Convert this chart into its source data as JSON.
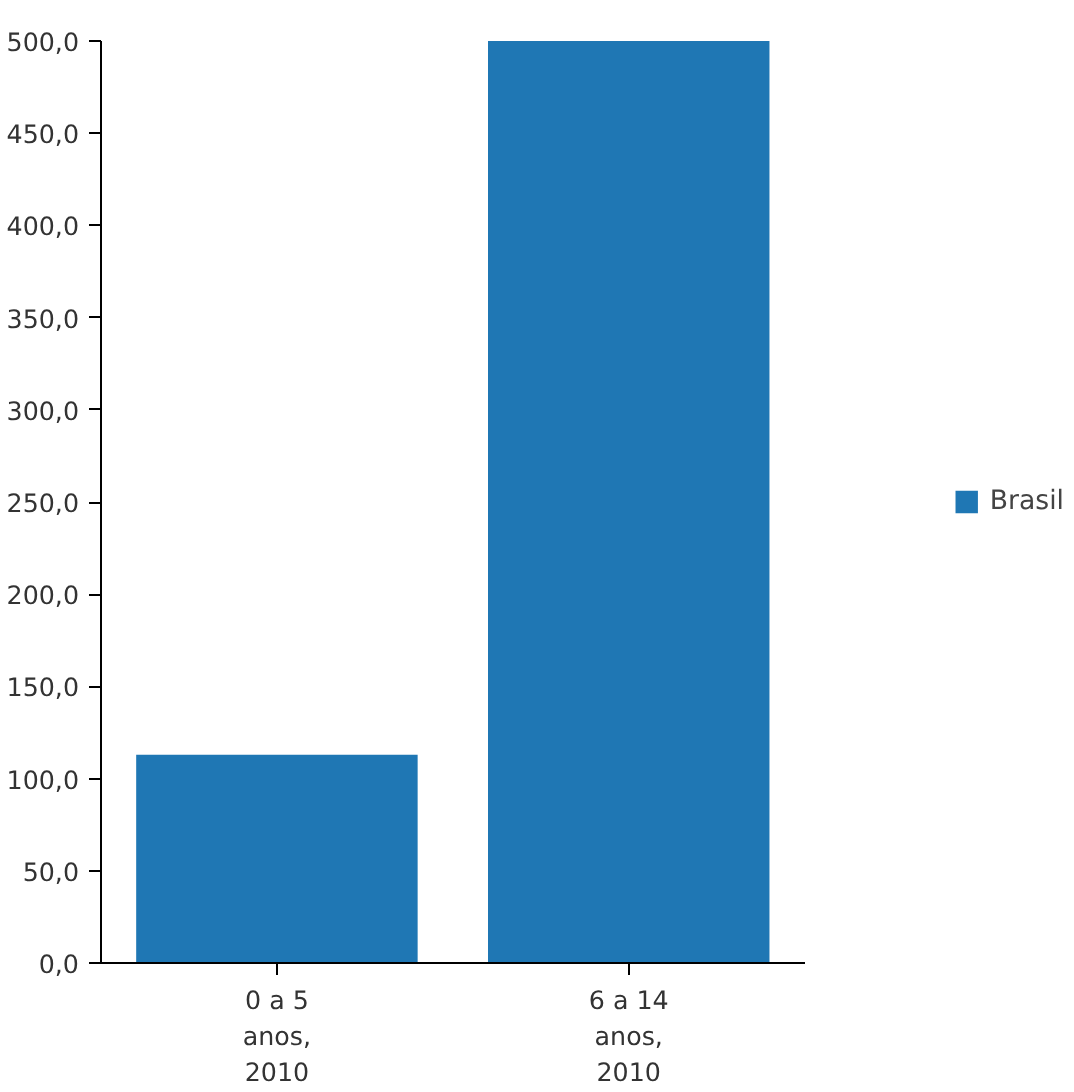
{
  "chart_data": {
    "type": "bar",
    "categories": [
      "0 a 5 anos, 2010",
      "6 a 14 anos, 2010"
    ],
    "series": [
      {
        "name": "Brasil",
        "color": "#1f77b4",
        "values": [
          113,
          500
        ]
      }
    ],
    "ylim": [
      0,
      500
    ],
    "yticks": [
      {
        "value": 0,
        "label": "0,0"
      },
      {
        "value": 50,
        "label": "50,0"
      },
      {
        "value": 100,
        "label": "100,0"
      },
      {
        "value": 150,
        "label": "150,0"
      },
      {
        "value": 200,
        "label": "200,0"
      },
      {
        "value": 250,
        "label": "250,0"
      },
      {
        "value": 300,
        "label": "300,0"
      },
      {
        "value": 350,
        "label": "350,0"
      },
      {
        "value": 400,
        "label": "400,0"
      },
      {
        "value": 450,
        "label": "450,0"
      },
      {
        "value": 500,
        "label": "500,0"
      }
    ],
    "legend": "right"
  }
}
